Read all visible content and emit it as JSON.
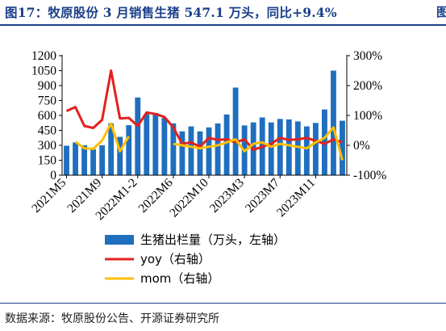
{
  "figure": {
    "title": "图17：牧原股份 3 月销售生猪 547.1 万头，同比+9.4%",
    "source": "数据来源：牧原股份公告、开源证券研究所"
  },
  "colors": {
    "bar": "#1f6fbe",
    "yoy": "#e2211c",
    "mom": "#ffbf00",
    "title": "#1a3f8a"
  },
  "chart_data": {
    "type": "bar",
    "x_tick_labels": [
      "2021M5",
      "2021M9",
      "2022M1-2",
      "2022M6",
      "2022M10",
      "2023M3",
      "2023M7",
      "2023M11"
    ],
    "x_tick_indices": [
      0,
      4,
      8,
      12,
      16,
      20,
      24,
      28
    ],
    "y_left": {
      "ticks": [
        0,
        150,
        300,
        450,
        600,
        750,
        900,
        1050,
        1200
      ],
      "range": [
        0,
        1200
      ]
    },
    "y_right": {
      "ticks": [
        "300%",
        "200%",
        "100%",
        "0%",
        "-100%"
      ],
      "values": [
        300,
        200,
        100,
        0,
        -100
      ],
      "range": [
        -100,
        300
      ]
    },
    "series": [
      {
        "name": "生猪出栏量（万头，左轴）",
        "kind": "bar",
        "axis": "left",
        "values": [
          296,
          330,
          300,
          260,
          300,
          520,
          385,
          502,
          780,
          615,
          625,
          575,
          520,
          440,
          490,
          440,
          480,
          520,
          610,
          880,
          500,
          530,
          580,
          530,
          565,
          560,
          540,
          490,
          525,
          660,
          1050,
          547
        ]
      },
      {
        "name": "yoy（右轴）",
        "kind": "line",
        "axis": "right",
        "values": [
          115,
          128,
          65,
          58,
          85,
          250,
          90,
          92,
          65,
          110,
          105,
          95,
          60,
          5,
          10,
          -5,
          25,
          18,
          20,
          10,
          20,
          -15,
          -5,
          5,
          25,
          18,
          20,
          25,
          15,
          5,
          20,
          9.4
        ]
      },
      {
        "name": "mom（右轴）",
        "kind": "line",
        "axis": "right",
        "values": [
          null,
          12,
          -10,
          -12,
          16,
          73,
          -20,
          30,
          null,
          null,
          null,
          null,
          5,
          0,
          -5,
          -10,
          -5,
          0,
          10,
          20,
          -20,
          5,
          10,
          -5,
          5,
          0,
          -5,
          -10,
          10,
          25,
          60,
          -50
        ]
      }
    ],
    "legend": [
      {
        "label": "生猪出栏量（万头，左轴）",
        "swatch": "bar"
      },
      {
        "label": "yoy（右轴）",
        "swatch": "yoy"
      },
      {
        "label": "mom（右轴）",
        "swatch": "mom"
      }
    ],
    "legend_position": "bottom-center",
    "grid": false
  }
}
